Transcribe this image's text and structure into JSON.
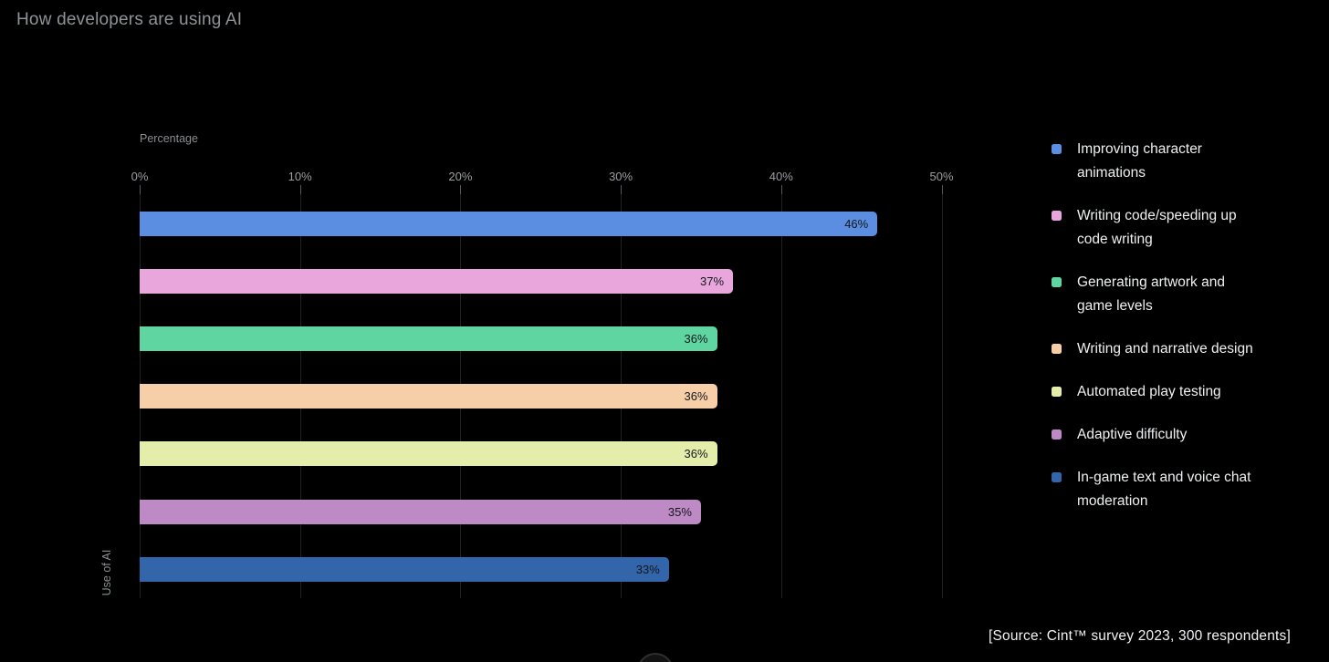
{
  "page": {
    "title": "How developers are using AI",
    "source": "[Source: Cint™ survey 2023, 300 respondents]"
  },
  "chart_data": {
    "type": "bar",
    "orientation": "horizontal",
    "title": "How developers are using AI",
    "xlabel": "Percentage",
    "ylabel": "Use of AI",
    "xlim": [
      0,
      53
    ],
    "grid": true,
    "legend_position": "right",
    "x_ticks": [
      {
        "label": "0%",
        "value": 0
      },
      {
        "label": "10%",
        "value": 10
      },
      {
        "label": "20%",
        "value": 20
      },
      {
        "label": "30%",
        "value": 30
      },
      {
        "label": "40%",
        "value": 40
      },
      {
        "label": "50%",
        "value": 50
      }
    ],
    "categories": [
      "Improving character animations",
      "Writing code/speeding up code writing",
      "Generating artwork and game levels",
      "Writing and narrative design",
      "Automated play testing",
      "Adaptive difficulty",
      "In-game text and voice chat moderation"
    ],
    "values": [
      46,
      37,
      36,
      36,
      36,
      35,
      33
    ],
    "value_labels": [
      "46%",
      "37%",
      "36%",
      "36%",
      "36%",
      "35%",
      "33%"
    ],
    "colors": [
      "#5b8de1",
      "#e8a6dc",
      "#5fd5a2",
      "#f6cfa8",
      "#e4edaa",
      "#bd8ac6",
      "#3365ab"
    ],
    "legend_lines": [
      [
        "Improving character",
        "animations"
      ],
      [
        "Writing code/speeding up",
        "code writing"
      ],
      [
        "Generating artwork and",
        "game levels"
      ],
      [
        "Writing and narrative design"
      ],
      [
        "Automated play testing"
      ],
      [
        "Adaptive difficulty"
      ],
      [
        "In-game text and voice chat",
        "moderation"
      ]
    ]
  }
}
